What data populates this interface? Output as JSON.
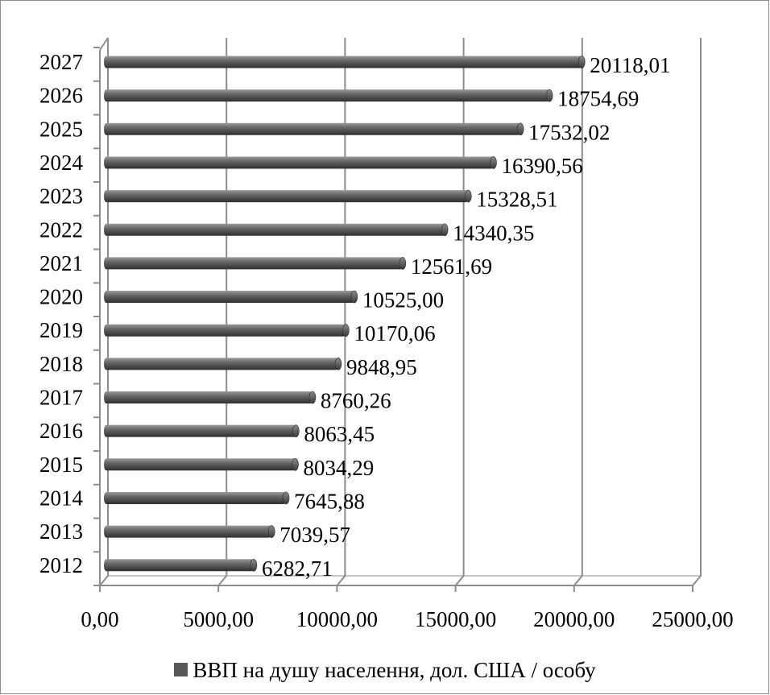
{
  "chart_data": {
    "type": "bar",
    "orientation": "horizontal",
    "categories": [
      "2012",
      "2013",
      "2014",
      "2015",
      "2016",
      "2017",
      "2018",
      "2019",
      "2020",
      "2021",
      "2022",
      "2023",
      "2024",
      "2025",
      "2026",
      "2027"
    ],
    "series": [
      {
        "name": "ВВП на душу населення, дол. США / особу",
        "values": [
          6282.71,
          7039.57,
          7645.88,
          8034.29,
          8063.45,
          8760.26,
          9848.95,
          10170.06,
          10525.0,
          12561.69,
          14340.35,
          15328.51,
          16390.56,
          17532.02,
          18754.69,
          20118.01
        ],
        "value_labels": [
          "6282,71",
          "7039,57",
          "7645,88",
          "8034,29",
          "8063,45",
          "8760,26",
          "9848,95",
          "10170,06",
          "10525,00",
          "12561,69",
          "14340,35",
          "15328,51",
          "16390,56",
          "17532,02",
          "18754,69",
          "20118,01"
        ],
        "color": "#595959"
      }
    ],
    "x_ticks": [
      "0,00",
      "5000,00",
      "10000,00",
      "15000,00",
      "20000,00",
      "25000,00"
    ],
    "xlim": [
      0,
      25000
    ],
    "grid": true,
    "legend_position": "bottom",
    "style": "3d-cylinder"
  }
}
